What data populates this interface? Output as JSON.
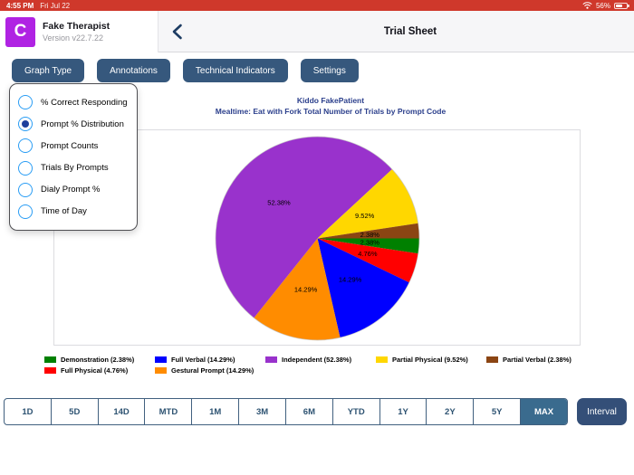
{
  "colors": {
    "accent_navy": "#36587d",
    "range_selected": "#3a6b8e",
    "status_bar_red": "#cf382b",
    "brand_purple": "#b023e3",
    "chart_title_navy": "#2b3f8c"
  },
  "status_bar": {
    "time": "4:55 PM",
    "date": "Fri Jul 22",
    "battery": "56%"
  },
  "header": {
    "app_icon_letter": "C",
    "app_name": "Fake Therapist",
    "version": "Version v22.7.22",
    "title": "Trial Sheet"
  },
  "action_buttons": [
    "Graph Type",
    "Annotations",
    "Technical Indicators",
    "Settings"
  ],
  "graph_type_menu": {
    "options": [
      {
        "label": "% Correct Responding",
        "selected": false
      },
      {
        "label": "Prompt % Distribution",
        "selected": true
      },
      {
        "label": "Prompt Counts",
        "selected": false
      },
      {
        "label": "Trials By Prompts",
        "selected": false
      },
      {
        "label": "Dialy Prompt %",
        "selected": false
      },
      {
        "label": "Time of Day",
        "selected": false
      }
    ]
  },
  "chart_data": {
    "type": "pie",
    "title": "Kiddo FakePatient",
    "subtitle": "Mealtime: Eat with Fork Total Number of Trials by Prompt Code",
    "start_angle_deg": 0,
    "direction": "clockwise",
    "slices": [
      {
        "label": "Demonstration",
        "pct": 2.38,
        "color": "#008000"
      },
      {
        "label": "Full Physical",
        "pct": 4.76,
        "color": "#ff0000"
      },
      {
        "label": "Full Verbal",
        "pct": 14.29,
        "color": "#0000ff"
      },
      {
        "label": "Gestural Prompt",
        "pct": 14.29,
        "color": "#ff8c00"
      },
      {
        "label": "Independent",
        "pct": 52.38,
        "color": "#9932cc"
      },
      {
        "label": "Partial Physical",
        "pct": 9.52,
        "color": "#ffd700"
      },
      {
        "label": "Partial Verbal",
        "pct": 2.38,
        "color": "#8b4513"
      }
    ],
    "legend_rows": [
      [
        {
          "label": "Demonstration (2.38%)",
          "color": "#008000"
        },
        {
          "label": "Full Verbal (14.29%)",
          "color": "#0000ff"
        },
        {
          "label": "Independent (52.38%)",
          "color": "#9932cc"
        },
        {
          "label": "Partial Physical (9.52%)",
          "color": "#ffd700"
        },
        {
          "label": "Partial Verbal (2.38%)",
          "color": "#8b4513"
        }
      ],
      [
        {
          "label": "Full Physical (4.76%)",
          "color": "#ff0000"
        },
        {
          "label": "Gestural Prompt (14.29%)",
          "color": "#ff8c00"
        }
      ]
    ]
  },
  "range_bar": {
    "options": [
      "1D",
      "5D",
      "14D",
      "MTD",
      "1M",
      "3M",
      "6M",
      "YTD",
      "1Y",
      "2Y",
      "5Y",
      "MAX"
    ],
    "selected": "MAX",
    "interval_label": "Interval"
  }
}
